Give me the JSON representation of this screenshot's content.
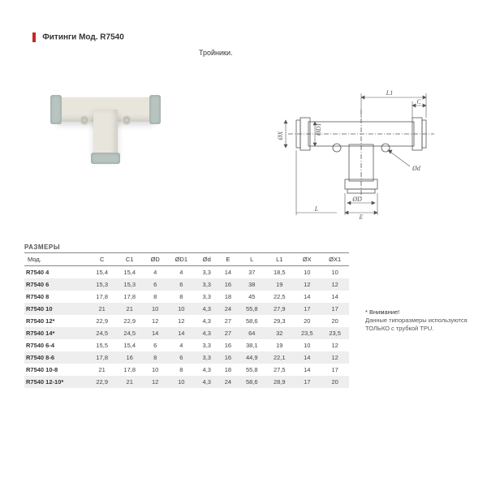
{
  "header": {
    "title": "Фитинги Мод. R7540",
    "subtitle": "Тройники."
  },
  "table": {
    "title": "РАЗМЕРЫ",
    "columns": [
      "Мод.",
      "C",
      "C1",
      "ØD",
      "ØD1",
      "Ød",
      "E",
      "L",
      "L1",
      "ØX",
      "ØX1"
    ],
    "rows": [
      [
        "R7540 4",
        "15,4",
        "15,4",
        "4",
        "4",
        "3,3",
        "14",
        "37",
        "18,5",
        "10",
        "10"
      ],
      [
        "R7540 6",
        "15,3",
        "15,3",
        "6",
        "6",
        "3,3",
        "16",
        "38",
        "19",
        "12",
        "12"
      ],
      [
        "R7540 8",
        "17,8",
        "17,8",
        "8",
        "8",
        "3,3",
        "18",
        "45",
        "22,5",
        "14",
        "14"
      ],
      [
        "R7540 10",
        "21",
        "21",
        "10",
        "10",
        "4,3",
        "24",
        "55,8",
        "27,9",
        "17",
        "17"
      ],
      [
        "R7540 12*",
        "22,9",
        "22,9",
        "12",
        "12",
        "4,3",
        "27",
        "58,6",
        "29,3",
        "20",
        "20"
      ],
      [
        "R7540 14*",
        "24,5",
        "24,5",
        "14",
        "14",
        "4,3",
        "27",
        "64",
        "32",
        "23,5",
        "23,5"
      ],
      [
        "R7540 6-4",
        "15,5",
        "15,4",
        "6",
        "4",
        "3,3",
        "16",
        "38,1",
        "19",
        "10",
        "12"
      ],
      [
        "R7540 8-6",
        "17,8",
        "16",
        "8",
        "6",
        "3,3",
        "16",
        "44,9",
        "22,1",
        "14",
        "12"
      ],
      [
        "R7540 10-8",
        "21",
        "17,8",
        "10",
        "8",
        "4,3",
        "18",
        "55,8",
        "27,5",
        "14",
        "17"
      ],
      [
        "R7540 12-10*",
        "22,9",
        "21",
        "12",
        "10",
        "4,3",
        "24",
        "58,6",
        "28,9",
        "17",
        "20"
      ]
    ]
  },
  "note": {
    "title": "* Внимание!",
    "text": "Данные типоразмеры используются ТОЛЬКО с трубкой TPU."
  },
  "drawing": {
    "labels": {
      "L1": "L1",
      "C": "C",
      "OX": "ØX",
      "OD1": "ØD1",
      "Od": "Ød",
      "OD": "ØD",
      "E": "E",
      "L": "L"
    },
    "stroke": "#555555",
    "stroke_width": 0.8
  },
  "colors": {
    "accent": "#c62828",
    "text": "#333333",
    "grid": "#eeeeee"
  }
}
